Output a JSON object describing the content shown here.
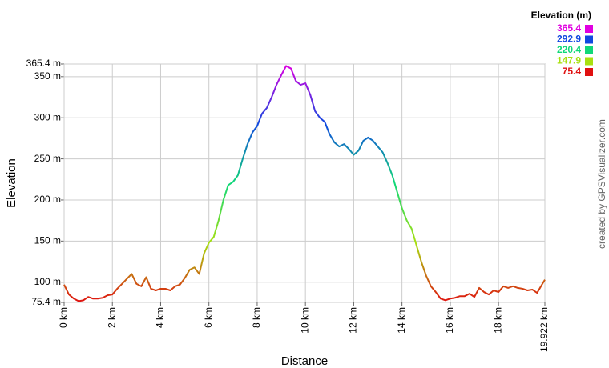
{
  "chart_data": {
    "type": "line",
    "x_label": "Distance",
    "y_label": "Elevation",
    "credit": "created by GPSVisualizer.com",
    "xlim": [
      0,
      19.922
    ],
    "xticks": [
      {
        "value": 0,
        "label": "0 km"
      },
      {
        "value": 2,
        "label": "2 km"
      },
      {
        "value": 4,
        "label": "4 km"
      },
      {
        "value": 6,
        "label": "6 km"
      },
      {
        "value": 8,
        "label": "8 km"
      },
      {
        "value": 10,
        "label": "10 km"
      },
      {
        "value": 12,
        "label": "12 km"
      },
      {
        "value": 14,
        "label": "14 km"
      },
      {
        "value": 16,
        "label": "16 km"
      },
      {
        "value": 18,
        "label": "18 km"
      },
      {
        "value": 19.922,
        "label": "19.922 km"
      }
    ],
    "ylim": [
      75.4,
      365.4
    ],
    "yticks": [
      {
        "value": 75.4,
        "label": "75.4 m"
      },
      {
        "value": 100,
        "label": "100 m"
      },
      {
        "value": 150,
        "label": "150 m"
      },
      {
        "value": 200,
        "label": "200 m"
      },
      {
        "value": 250,
        "label": "250 m"
      },
      {
        "value": 300,
        "label": "300 m"
      },
      {
        "value": 350,
        "label": "350 m"
      },
      {
        "value": 365.4,
        "label": "365.4 m"
      }
    ],
    "grid": true,
    "legend": {
      "title": "Elevation (m)",
      "entries": [
        {
          "value": 365.4,
          "color": "#e000e0"
        },
        {
          "value": 292.9,
          "color": "#1048e0"
        },
        {
          "value": 220.4,
          "color": "#10d878"
        },
        {
          "value": 147.9,
          "color": "#a8e010"
        },
        {
          "value": 75.4,
          "color": "#e01010"
        }
      ]
    },
    "x": [
      0,
      0.2,
      0.4,
      0.6,
      0.8,
      1.0,
      1.2,
      1.4,
      1.6,
      1.8,
      2.0,
      2.2,
      2.4,
      2.6,
      2.8,
      3.0,
      3.2,
      3.4,
      3.6,
      3.8,
      4.0,
      4.2,
      4.4,
      4.6,
      4.8,
      5.0,
      5.2,
      5.4,
      5.6,
      5.8,
      6.0,
      6.2,
      6.4,
      6.6,
      6.8,
      7.0,
      7.2,
      7.4,
      7.6,
      7.8,
      8.0,
      8.2,
      8.4,
      8.6,
      8.8,
      9.0,
      9.2,
      9.4,
      9.6,
      9.8,
      10.0,
      10.2,
      10.4,
      10.6,
      10.8,
      11.0,
      11.2,
      11.4,
      11.6,
      11.8,
      12.0,
      12.2,
      12.4,
      12.6,
      12.8,
      13.0,
      13.2,
      13.4,
      13.6,
      13.8,
      14.0,
      14.2,
      14.4,
      14.6,
      14.8,
      15.0,
      15.2,
      15.4,
      15.6,
      15.8,
      16.0,
      16.2,
      16.4,
      16.6,
      16.8,
      17.0,
      17.2,
      17.4,
      17.6,
      17.8,
      18.0,
      18.2,
      18.4,
      18.6,
      18.8,
      19.0,
      19.2,
      19.4,
      19.6,
      19.8,
      19.922
    ],
    "values": [
      97,
      85,
      80,
      77,
      78,
      82,
      80,
      80,
      81,
      84,
      85,
      92,
      98,
      104,
      110,
      98,
      95,
      106,
      92,
      90,
      92,
      92,
      90,
      95,
      97,
      105,
      115,
      118,
      110,
      135,
      148,
      155,
      175,
      200,
      218,
      222,
      230,
      250,
      268,
      282,
      290,
      305,
      312,
      325,
      340,
      352,
      363,
      360,
      345,
      340,
      342,
      328,
      308,
      300,
      295,
      280,
      270,
      265,
      268,
      262,
      255,
      260,
      272,
      276,
      272,
      265,
      258,
      245,
      230,
      210,
      190,
      175,
      165,
      145,
      125,
      108,
      95,
      88,
      80,
      78,
      80,
      81,
      83,
      83,
      86,
      82,
      93,
      88,
      85,
      90,
      88,
      95,
      93,
      95,
      93,
      92,
      90,
      91,
      87,
      97,
      103
    ]
  }
}
